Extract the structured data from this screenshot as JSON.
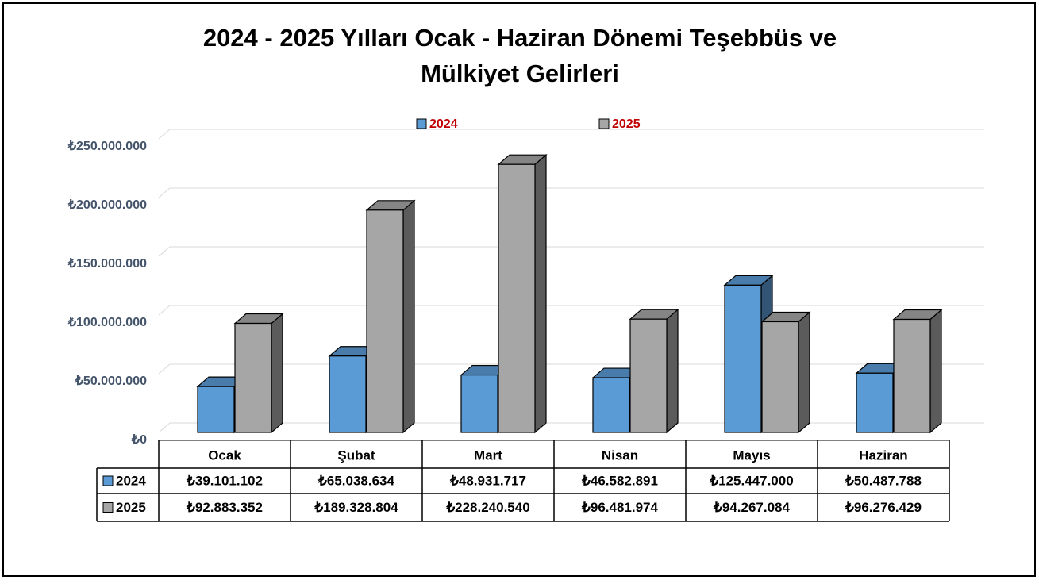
{
  "chart_data": {
    "type": "bar3d",
    "title": "2024 - 2025 Yılları Ocak - Haziran Dönemi Teşebbüs ve",
    "subtitle": "Mülkiyet Gelirleri",
    "categories": [
      "Ocak",
      "Şubat",
      "Mart",
      "Nisan",
      "Mayıs",
      "Haziran"
    ],
    "series": [
      {
        "name": "2024",
        "color": "#5b9bd5",
        "values": [
          39101102,
          65038634,
          48931717,
          46582891,
          125447000,
          50487788
        ],
        "value_labels": [
          "₺39.101.102",
          "₺65.038.634",
          "₺48.931.717",
          "₺46.582.891",
          "₺125.447.000",
          "₺50.487.788"
        ]
      },
      {
        "name": "2025",
        "color": "#a6a6a6",
        "values": [
          92883352,
          189328804,
          228240540,
          96481974,
          94267084,
          96276429
        ],
        "value_labels": [
          "₺92.883.352",
          "₺189.328.804",
          "₺228.240.540",
          "₺96.481.974",
          "₺94.267.084",
          "₺96.276.429"
        ]
      }
    ],
    "ylim": [
      0,
      250000000
    ],
    "yticks": [
      {
        "value": 0,
        "label": "₺0"
      },
      {
        "value": 50000000,
        "label": "₺50.000.000"
      },
      {
        "value": 100000000,
        "label": "₺100.000.000"
      },
      {
        "value": 150000000,
        "label": "₺150.000.000"
      },
      {
        "value": 200000000,
        "label": "₺200.000.000"
      },
      {
        "value": 250000000,
        "label": "₺250.000.000"
      }
    ],
    "grid": true
  }
}
